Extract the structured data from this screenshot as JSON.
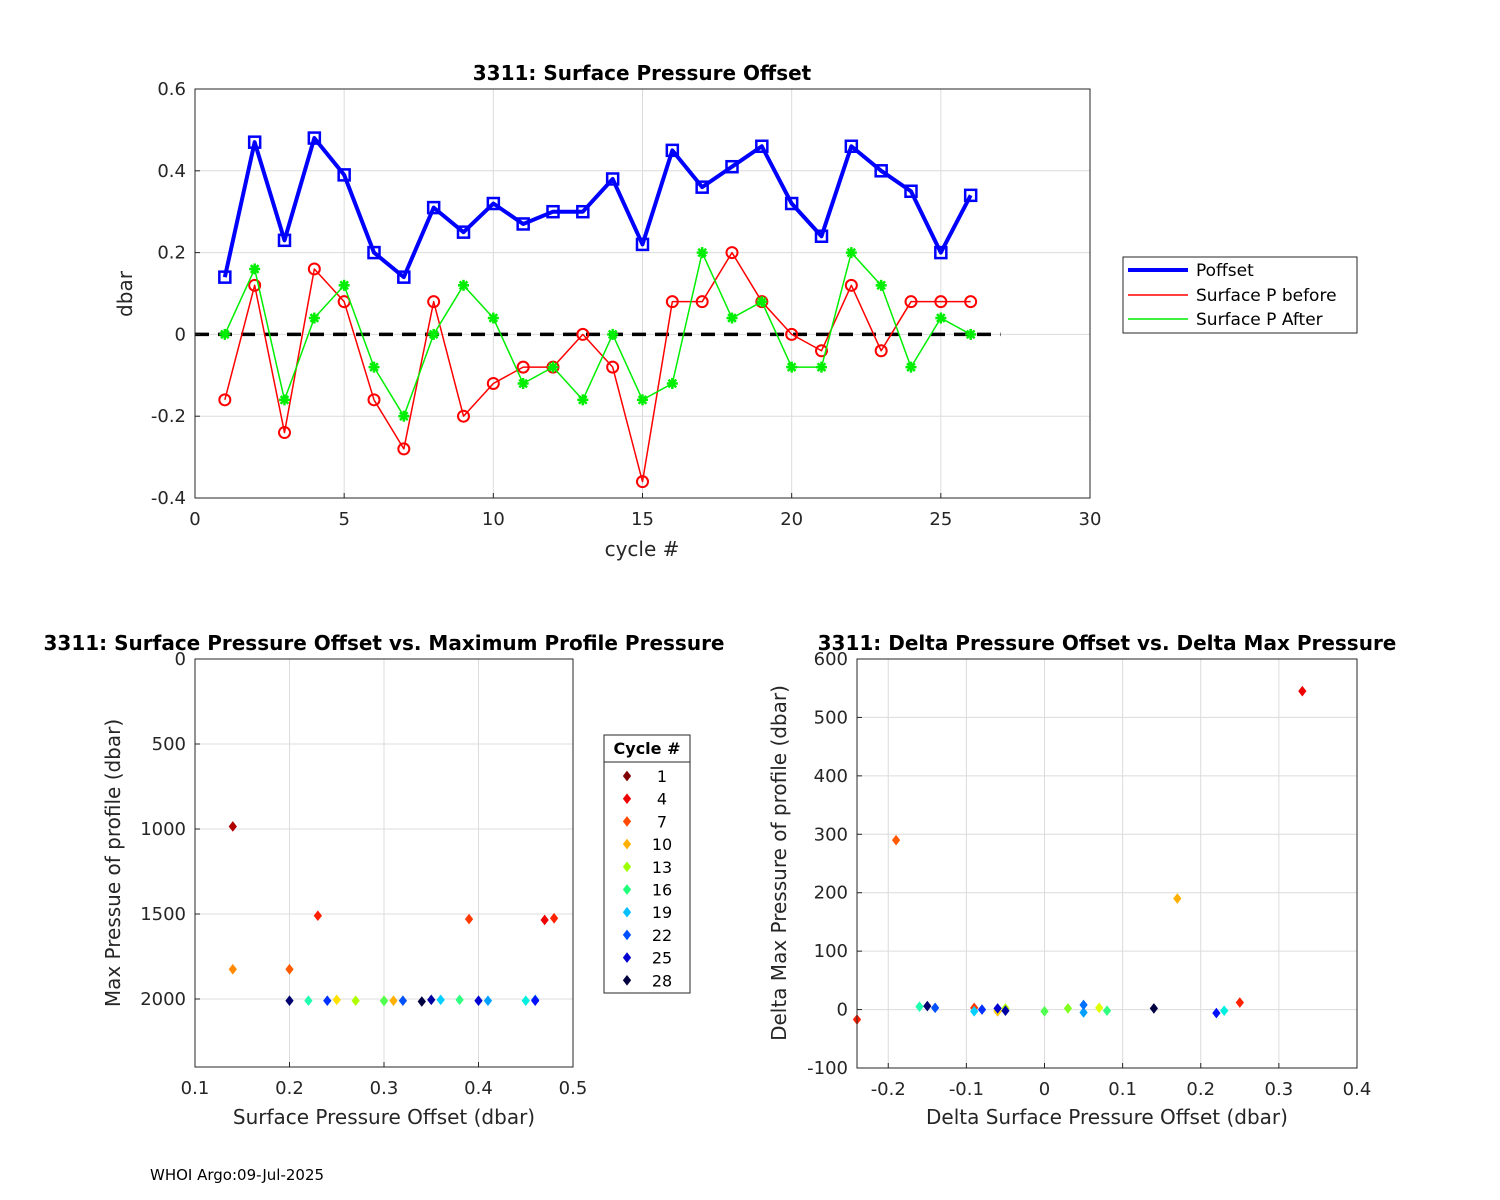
{
  "footer": "WHOI Argo:09-Jul-2025",
  "chart_data": [
    {
      "type": "line",
      "title": "3311: Surface Pressure Offset",
      "xlabel": "cycle #",
      "ylabel": "dbar",
      "xlim": [
        0,
        30
      ],
      "ylim": [
        -0.4,
        0.6
      ],
      "xticks": [
        0,
        5,
        10,
        15,
        20,
        25,
        30
      ],
      "xtick_labels": [
        "0",
        "5",
        "10",
        "15",
        "20",
        "25",
        "30"
      ],
      "yticks": [
        -0.4,
        -0.2,
        0,
        0.2,
        0.4,
        0.6
      ],
      "ytick_labels": [
        "-0.4",
        "-0.2",
        "0",
        "0.2",
        "0.4",
        "0.6"
      ],
      "grid": true,
      "legend_placement": "outside-right",
      "zero_line": {
        "x": [
          0,
          27
        ],
        "y": 0,
        "style": "dashed",
        "color": "#000000"
      },
      "x": [
        1,
        2,
        3,
        4,
        5,
        6,
        7,
        8,
        9,
        10,
        11,
        12,
        13,
        14,
        15,
        16,
        17,
        18,
        19,
        20,
        21,
        22,
        23,
        24,
        25,
        26
      ],
      "series": [
        {
          "name": "Poffset",
          "color": "#0000ff",
          "marker": "square",
          "width": 4,
          "values": [
            0.14,
            0.47,
            0.23,
            0.48,
            0.39,
            0.2,
            0.14,
            0.31,
            0.25,
            0.32,
            0.27,
            0.3,
            0.3,
            0.38,
            0.22,
            0.45,
            0.36,
            0.41,
            0.46,
            0.32,
            0.24,
            0.46,
            0.4,
            0.35,
            0.2,
            0.34
          ]
        },
        {
          "name": "Surface P before",
          "color": "#ff0000",
          "marker": "circle",
          "width": 1.5,
          "values": [
            -0.16,
            0.12,
            -0.24,
            0.16,
            0.08,
            -0.16,
            -0.28,
            0.08,
            -0.2,
            -0.12,
            -0.08,
            -0.08,
            0.0,
            -0.08,
            -0.36,
            0.08,
            0.08,
            0.2,
            0.08,
            0.0,
            -0.04,
            0.12,
            -0.04,
            0.08,
            0.08,
            0.08
          ]
        },
        {
          "name": "Surface P After",
          "color": "#00ee00",
          "marker": "star",
          "width": 1.5,
          "values": [
            0.0,
            0.16,
            -0.16,
            0.04,
            0.12,
            -0.08,
            -0.2,
            0.0,
            0.12,
            0.04,
            -0.12,
            -0.08,
            -0.16,
            0.0,
            -0.16,
            -0.12,
            0.2,
            0.04,
            0.08,
            -0.08,
            -0.08,
            0.2,
            0.12,
            -0.08,
            0.04,
            0.0
          ]
        }
      ]
    },
    {
      "type": "scatter",
      "title": "3311: Surface Pressure Offset vs. Maximum Profile Pressure",
      "xlabel": "Surface Pressure Offset (dbar)",
      "ylabel": "Max Pressue of profile (dbar)",
      "xlim": [
        0.1,
        0.5
      ],
      "ylim": [
        0,
        2400
      ],
      "y_reversed": true,
      "xticks": [
        0.1,
        0.2,
        0.3,
        0.4,
        0.5
      ],
      "xtick_labels": [
        "0.1",
        "0.2",
        "0.3",
        "0.4",
        "0.5"
      ],
      "yticks": [
        0,
        500,
        1000,
        1500,
        2000
      ],
      "ytick_labels": [
        "0",
        "500",
        "1000",
        "1500",
        "2000"
      ],
      "grid": true,
      "legend_title": "Cycle #",
      "legend_entries": [
        {
          "label": "1",
          "color": "#7f0000"
        },
        {
          "label": "4",
          "color": "#ee0000"
        },
        {
          "label": "7",
          "color": "#ff4a00"
        },
        {
          "label": "10",
          "color": "#ffb000"
        },
        {
          "label": "13",
          "color": "#9eff00"
        },
        {
          "label": "16",
          "color": "#20ff7a"
        },
        {
          "label": "19",
          "color": "#00c0ff"
        },
        {
          "label": "22",
          "color": "#0050ff"
        },
        {
          "label": "25",
          "color": "#0000d0"
        },
        {
          "label": "28",
          "color": "#000040"
        }
      ],
      "points": [
        {
          "x": 0.14,
          "y": 985,
          "color": "#b00000"
        },
        {
          "x": 0.47,
          "y": 1535,
          "color": "#ee0000"
        },
        {
          "x": 0.23,
          "y": 1510,
          "color": "#ff1e00"
        },
        {
          "x": 0.48,
          "y": 1525,
          "color": "#ff2200"
        },
        {
          "x": 0.39,
          "y": 1530,
          "color": "#ff3a00"
        },
        {
          "x": 0.2,
          "y": 1825,
          "color": "#ff5a00"
        },
        {
          "x": 0.14,
          "y": 1825,
          "color": "#ff8a00"
        },
        {
          "x": 0.31,
          "y": 2010,
          "color": "#ffb000"
        },
        {
          "x": 0.25,
          "y": 2005,
          "color": "#ffe000"
        },
        {
          "x": 0.32,
          "y": 2010,
          "color": "#e0ff00"
        },
        {
          "x": 0.27,
          "y": 2010,
          "color": "#b0ff00"
        },
        {
          "x": 0.3,
          "y": 2010,
          "color": "#80ff20"
        },
        {
          "x": 0.3,
          "y": 2012,
          "color": "#50ff50"
        },
        {
          "x": 0.38,
          "y": 2005,
          "color": "#30ff80"
        },
        {
          "x": 0.22,
          "y": 2010,
          "color": "#20ffb0"
        },
        {
          "x": 0.45,
          "y": 2010,
          "color": "#00f0e0"
        },
        {
          "x": 0.36,
          "y": 2005,
          "color": "#00d0ff"
        },
        {
          "x": 0.41,
          "y": 2010,
          "color": "#00a0ff"
        },
        {
          "x": 0.46,
          "y": 2005,
          "color": "#0070ff"
        },
        {
          "x": 0.32,
          "y": 2010,
          "color": "#0050ff"
        },
        {
          "x": 0.24,
          "y": 2010,
          "color": "#0030ff"
        },
        {
          "x": 0.46,
          "y": 2010,
          "color": "#0010ff"
        },
        {
          "x": 0.4,
          "y": 2010,
          "color": "#0000d0"
        },
        {
          "x": 0.35,
          "y": 2005,
          "color": "#0000a0"
        },
        {
          "x": 0.2,
          "y": 2010,
          "color": "#000070"
        },
        {
          "x": 0.34,
          "y": 2015,
          "color": "#000040"
        }
      ]
    },
    {
      "type": "scatter",
      "title": "3311: Delta Pressure Offset vs. Delta Max Pressure",
      "xlabel": "Delta Surface Pressure Offset (dbar)",
      "ylabel": "Delta Max Pressure of profile (dbar)",
      "xlim": [
        -0.24,
        0.4
      ],
      "ylim": [
        -100,
        600
      ],
      "xticks": [
        -0.2,
        -0.1,
        0,
        0.1,
        0.2,
        0.3,
        0.4
      ],
      "xtick_labels": [
        "-0.2",
        "-0.1",
        "0",
        "0.1",
        "0.2",
        "0.3",
        "0.4"
      ],
      "yticks": [
        -100,
        0,
        100,
        200,
        300,
        400,
        500,
        600
      ],
      "ytick_labels": [
        "-100",
        "0",
        "100",
        "200",
        "300",
        "400",
        "500",
        "600"
      ],
      "grid": true,
      "points": [
        {
          "x": 0.33,
          "y": 545,
          "color": "#ee0000"
        },
        {
          "x": -0.24,
          "y": -17,
          "color": "#ff1e00"
        },
        {
          "x": 0.25,
          "y": 12,
          "color": "#ff2200"
        },
        {
          "x": -0.09,
          "y": 3,
          "color": "#ff3a00"
        },
        {
          "x": -0.19,
          "y": 290,
          "color": "#ff5a00"
        },
        {
          "x": -0.06,
          "y": -3,
          "color": "#ff8a00"
        },
        {
          "x": 0.17,
          "y": 190,
          "color": "#ffb000"
        },
        {
          "x": -0.06,
          "y": -2,
          "color": "#ffe000"
        },
        {
          "x": 0.07,
          "y": 3,
          "color": "#e0ff00"
        },
        {
          "x": -0.05,
          "y": 2,
          "color": "#b0ff00"
        },
        {
          "x": 0.03,
          "y": 2,
          "color": "#80ff20"
        },
        {
          "x": 0.0,
          "y": -3,
          "color": "#50ff50"
        },
        {
          "x": 0.08,
          "y": -2,
          "color": "#30ff80"
        },
        {
          "x": -0.16,
          "y": 5,
          "color": "#20ffb0"
        },
        {
          "x": 0.23,
          "y": -2,
          "color": "#00f0e0"
        },
        {
          "x": -0.09,
          "y": -3,
          "color": "#00d0ff"
        },
        {
          "x": 0.05,
          "y": -5,
          "color": "#00a0ff"
        },
        {
          "x": 0.05,
          "y": 8,
          "color": "#0070ff"
        },
        {
          "x": -0.14,
          "y": 3,
          "color": "#0050ff"
        },
        {
          "x": -0.08,
          "y": 0,
          "color": "#0030ff"
        },
        {
          "x": 0.22,
          "y": -6,
          "color": "#0010ff"
        },
        {
          "x": -0.06,
          "y": 2,
          "color": "#0000d0"
        },
        {
          "x": -0.05,
          "y": -2,
          "color": "#0000a0"
        },
        {
          "x": -0.15,
          "y": 6,
          "color": "#000070"
        },
        {
          "x": 0.14,
          "y": 2,
          "color": "#000040"
        }
      ]
    }
  ]
}
